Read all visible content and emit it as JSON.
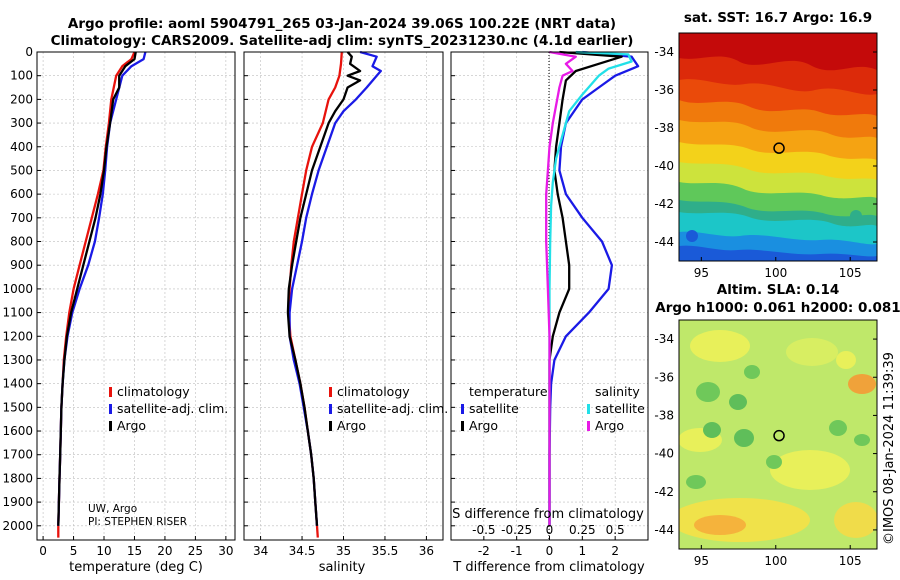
{
  "titles": {
    "line1": "Argo profile: aoml 5904791_265 03-Jan-2024 39.06S 100.22E (NRT data)",
    "line2": "Climatology: CARS2009. Satellite-adj clim: synTS_20231230.nc (4.1d earlier)"
  },
  "colors": {
    "climatology": "#e8120c",
    "satellite": "#1a1ae6",
    "argo": "#000000",
    "sat_salinity": "#22e0e8",
    "argo_salinity": "#e81ae6",
    "grid": "#bdbdbd"
  },
  "yaxis": {
    "ticks": [
      0,
      100,
      200,
      300,
      400,
      500,
      600,
      700,
      800,
      900,
      1000,
      1100,
      1200,
      1300,
      1400,
      1500,
      1600,
      1700,
      1800,
      1900,
      2000
    ],
    "lim": [
      0,
      2060
    ]
  },
  "credits": {
    "line1": "UW, Argo",
    "line2": "PI: STEPHEN RISER"
  },
  "watermark": "©IMOS 08-Jan-2024 11:39:39",
  "panels": {
    "sst_title": "sat. SST: 16.7 Argo: 16.9",
    "sla_title1": "Altim. SLA: 0.14",
    "sla_title2": "Argo h1000: 0.061 h2000: 0.081"
  },
  "chart_data": [
    {
      "type": "line",
      "id": "temperature",
      "xlabel": "temperature (deg C)",
      "xlim": [
        -1,
        31.5
      ],
      "xticks": [
        0,
        5,
        10,
        15,
        20,
        25,
        30
      ],
      "ylim": [
        0,
        2060
      ],
      "legend": {
        "placement": "lower-center",
        "entries": [
          "climatology",
          "satellite-adj. clim.",
          "Argo"
        ]
      },
      "series": [
        {
          "name": "climatology",
          "color_key": "climatology",
          "points": [
            [
              15,
              0
            ],
            [
              14.5,
              30
            ],
            [
              13,
              60
            ],
            [
              12,
              100
            ],
            [
              11.2,
              200
            ],
            [
              10.8,
              300
            ],
            [
              10.3,
              400
            ],
            [
              9.9,
              500
            ],
            [
              9,
              600
            ],
            [
              8,
              700
            ],
            [
              7,
              800
            ],
            [
              6,
              900
            ],
            [
              5,
              1000
            ],
            [
              4.3,
              1100
            ],
            [
              3.8,
              1200
            ],
            [
              3.4,
              1300
            ],
            [
              3.2,
              1400
            ],
            [
              3.0,
              1500
            ],
            [
              2.9,
              1600
            ],
            [
              2.8,
              1700
            ],
            [
              2.7,
              1800
            ],
            [
              2.6,
              1900
            ],
            [
              2.5,
              2000
            ],
            [
              2.5,
              2050
            ]
          ]
        },
        {
          "name": "satellite-adj. clim.",
          "color_key": "satellite",
          "points": [
            [
              16.8,
              0
            ],
            [
              16.5,
              30
            ],
            [
              14.5,
              60
            ],
            [
              13,
              100
            ],
            [
              12,
              200
            ],
            [
              11,
              300
            ],
            [
              10.5,
              400
            ],
            [
              10.2,
              500
            ],
            [
              9.8,
              600
            ],
            [
              9.2,
              700
            ],
            [
              8.5,
              800
            ],
            [
              7.4,
              900
            ],
            [
              6,
              1000
            ],
            [
              4.8,
              1100
            ],
            [
              4,
              1200
            ],
            [
              3.5,
              1300
            ],
            [
              3.2,
              1400
            ],
            [
              3.0,
              1500
            ],
            [
              2.9,
              1600
            ],
            [
              2.8,
              1700
            ],
            [
              2.7,
              1800
            ],
            [
              2.6,
              1900
            ],
            [
              2.5,
              2000
            ]
          ]
        },
        {
          "name": "Argo",
          "color_key": "argo",
          "points": [
            [
              15.2,
              0
            ],
            [
              15,
              30
            ],
            [
              13.5,
              60
            ],
            [
              12.5,
              100
            ],
            [
              12.5,
              150
            ],
            [
              11.5,
              200
            ],
            [
              11,
              300
            ],
            [
              10.4,
              400
            ],
            [
              10,
              500
            ],
            [
              9.4,
              600
            ],
            [
              8.6,
              700
            ],
            [
              7.6,
              800
            ],
            [
              6.6,
              900
            ],
            [
              5.6,
              1000
            ],
            [
              4.6,
              1100
            ],
            [
              3.9,
              1200
            ],
            [
              3.5,
              1300
            ],
            [
              3.2,
              1400
            ],
            [
              3.0,
              1500
            ],
            [
              2.9,
              1600
            ],
            [
              2.8,
              1700
            ],
            [
              2.7,
              1800
            ],
            [
              2.6,
              1900
            ],
            [
              2.5,
              2000
            ]
          ]
        }
      ]
    },
    {
      "type": "line",
      "id": "salinity",
      "xlabel": "salinity",
      "xlim": [
        33.8,
        36.2
      ],
      "xticks": [
        34,
        34.5,
        35,
        35.5,
        36
      ],
      "ylim": [
        0,
        2060
      ],
      "legend": {
        "placement": "lower-center",
        "entries": [
          "climatology",
          "satellite-adj. clim.",
          "Argo"
        ]
      },
      "series": [
        {
          "name": "climatology",
          "color_key": "climatology",
          "points": [
            [
              34.98,
              0
            ],
            [
              34.97,
              50
            ],
            [
              34.95,
              100
            ],
            [
              34.9,
              150
            ],
            [
              34.82,
              200
            ],
            [
              34.75,
              300
            ],
            [
              34.62,
              400
            ],
            [
              34.55,
              500
            ],
            [
              34.5,
              600
            ],
            [
              34.45,
              700
            ],
            [
              34.4,
              800
            ],
            [
              34.37,
              900
            ],
            [
              34.35,
              1000
            ],
            [
              34.34,
              1100
            ],
            [
              34.36,
              1200
            ],
            [
              34.42,
              1300
            ],
            [
              34.48,
              1400
            ],
            [
              34.53,
              1500
            ],
            [
              34.57,
              1600
            ],
            [
              34.61,
              1700
            ],
            [
              34.64,
              1800
            ],
            [
              34.66,
              1900
            ],
            [
              34.68,
              2000
            ],
            [
              34.69,
              2050
            ]
          ]
        },
        {
          "name": "satellite-adj. clim.",
          "color_key": "satellite",
          "points": [
            [
              35.2,
              0
            ],
            [
              35.4,
              20
            ],
            [
              35.35,
              60
            ],
            [
              35.45,
              80
            ],
            [
              35.4,
              100
            ],
            [
              35.28,
              150
            ],
            [
              35.15,
              200
            ],
            [
              35,
              250
            ],
            [
              34.9,
              300
            ],
            [
              34.8,
              400
            ],
            [
              34.7,
              500
            ],
            [
              34.62,
              600
            ],
            [
              34.55,
              700
            ],
            [
              34.5,
              800
            ],
            [
              34.44,
              900
            ],
            [
              34.38,
              1000
            ],
            [
              34.35,
              1100
            ],
            [
              34.35,
              1200
            ],
            [
              34.4,
              1300
            ],
            [
              34.47,
              1400
            ],
            [
              34.52,
              1500
            ],
            [
              34.57,
              1600
            ],
            [
              34.61,
              1700
            ],
            [
              34.64,
              1800
            ],
            [
              34.66,
              1900
            ],
            [
              34.68,
              2000
            ]
          ]
        },
        {
          "name": "Argo",
          "color_key": "argo",
          "points": [
            [
              35.05,
              0
            ],
            [
              35.1,
              20
            ],
            [
              35.08,
              50
            ],
            [
              35.2,
              80
            ],
            [
              35.05,
              100
            ],
            [
              35.2,
              120
            ],
            [
              35.05,
              150
            ],
            [
              35.0,
              200
            ],
            [
              34.9,
              250
            ],
            [
              34.82,
              300
            ],
            [
              34.72,
              400
            ],
            [
              34.62,
              500
            ],
            [
              34.55,
              600
            ],
            [
              34.48,
              700
            ],
            [
              34.43,
              800
            ],
            [
              34.38,
              900
            ],
            [
              34.34,
              1000
            ],
            [
              34.33,
              1100
            ],
            [
              34.35,
              1200
            ],
            [
              34.42,
              1300
            ],
            [
              34.48,
              1400
            ],
            [
              34.53,
              1500
            ],
            [
              34.57,
              1600
            ],
            [
              34.61,
              1700
            ],
            [
              34.64,
              1800
            ],
            [
              34.66,
              1900
            ],
            [
              34.68,
              2000
            ]
          ]
        }
      ]
    },
    {
      "type": "line",
      "id": "difference",
      "xlabel": "T difference from climatology",
      "xlabel_top": "S difference from climatology",
      "xlim": [
        -3,
        3
      ],
      "xticks": [
        -2,
        -1,
        0,
        1,
        2
      ],
      "xticks_s": [
        "-0.5",
        "-0.25",
        "0",
        "0.25",
        "0.5"
      ],
      "ylim": [
        0,
        2060
      ],
      "legend": {
        "placement": "lower-center",
        "group_left": "temperature",
        "group_right": "salinity",
        "entries_left": [
          "satellite",
          "Argo"
        ],
        "entries_right": [
          "satellite",
          "Argo"
        ]
      },
      "series": [
        {
          "name": "satellite",
          "group": "temperature",
          "color_key": "satellite",
          "points": [
            [
              1,
              0
            ],
            [
              2.5,
              20
            ],
            [
              2.7,
              60
            ],
            [
              2,
              100
            ],
            [
              1.5,
              150
            ],
            [
              1,
              200
            ],
            [
              0.5,
              300
            ],
            [
              0.35,
              400
            ],
            [
              0.3,
              500
            ],
            [
              0.5,
              600
            ],
            [
              1,
              700
            ],
            [
              1.6,
              800
            ],
            [
              1.9,
              900
            ],
            [
              1.8,
              1000
            ],
            [
              1.2,
              1100
            ],
            [
              0.5,
              1200
            ],
            [
              0.15,
              1300
            ],
            [
              0.05,
              1400
            ],
            [
              0.02,
              1500
            ],
            [
              0,
              1700
            ],
            [
              0,
              2000
            ]
          ]
        },
        {
          "name": "Argo",
          "group": "temperature",
          "color_key": "argo",
          "points": [
            [
              0.3,
              0
            ],
            [
              2.2,
              20
            ],
            [
              1.5,
              50
            ],
            [
              0.8,
              80
            ],
            [
              0.5,
              120
            ],
            [
              0.4,
              200
            ],
            [
              0.3,
              300
            ],
            [
              0.2,
              400
            ],
            [
              0.15,
              500
            ],
            [
              0.25,
              600
            ],
            [
              0.4,
              700
            ],
            [
              0.5,
              800
            ],
            [
              0.6,
              900
            ],
            [
              0.6,
              1000
            ],
            [
              0.3,
              1100
            ],
            [
              0.1,
              1200
            ],
            [
              0,
              1300
            ],
            [
              0,
              2000
            ]
          ]
        },
        {
          "name": "satellite",
          "group": "salinity",
          "color_key": "sat_salinity",
          "points": [
            [
              0.8,
              0
            ],
            [
              2.4,
              10
            ],
            [
              2.5,
              40
            ],
            [
              1.8,
              70
            ],
            [
              1.5,
              100
            ],
            [
              1,
              180
            ],
            [
              0.6,
              250
            ],
            [
              0.4,
              350
            ],
            [
              0.2,
              450
            ],
            [
              0.1,
              550
            ],
            [
              0.05,
              650
            ],
            [
              0.02,
              800
            ],
            [
              0,
              1000
            ],
            [
              0,
              2000
            ]
          ]
        },
        {
          "name": "Argo",
          "group": "salinity",
          "color_key": "argo_salinity",
          "points": [
            [
              0,
              0
            ],
            [
              0.8,
              20
            ],
            [
              0.5,
              50
            ],
            [
              0.7,
              80
            ],
            [
              0.4,
              100
            ],
            [
              0.3,
              150
            ],
            [
              0.1,
              300
            ],
            [
              0,
              400
            ],
            [
              -0.05,
              500
            ],
            [
              -0.1,
              600
            ],
            [
              -0.1,
              800
            ],
            [
              -0.05,
              1000
            ],
            [
              0,
              1200
            ],
            [
              0,
              2000
            ]
          ]
        }
      ]
    },
    {
      "type": "heatmap",
      "id": "sst-map",
      "xticks": [
        95,
        100,
        105
      ],
      "yticks": [
        -34,
        -36,
        -38,
        -40,
        -42,
        -44
      ],
      "xlim": [
        93.5,
        106.8
      ],
      "ylim": [
        -45,
        -33
      ],
      "marker": {
        "lon": 100.22,
        "lat": -39.06
      }
    },
    {
      "type": "heatmap",
      "id": "sla-map",
      "xticks": [
        95,
        100,
        105
      ],
      "yticks": [
        -34,
        -36,
        -38,
        -40,
        -42,
        -44
      ],
      "xlim": [
        93.5,
        106.8
      ],
      "ylim": [
        -45,
        -33
      ],
      "marker": {
        "lon": 100.22,
        "lat": -39.06
      }
    }
  ]
}
